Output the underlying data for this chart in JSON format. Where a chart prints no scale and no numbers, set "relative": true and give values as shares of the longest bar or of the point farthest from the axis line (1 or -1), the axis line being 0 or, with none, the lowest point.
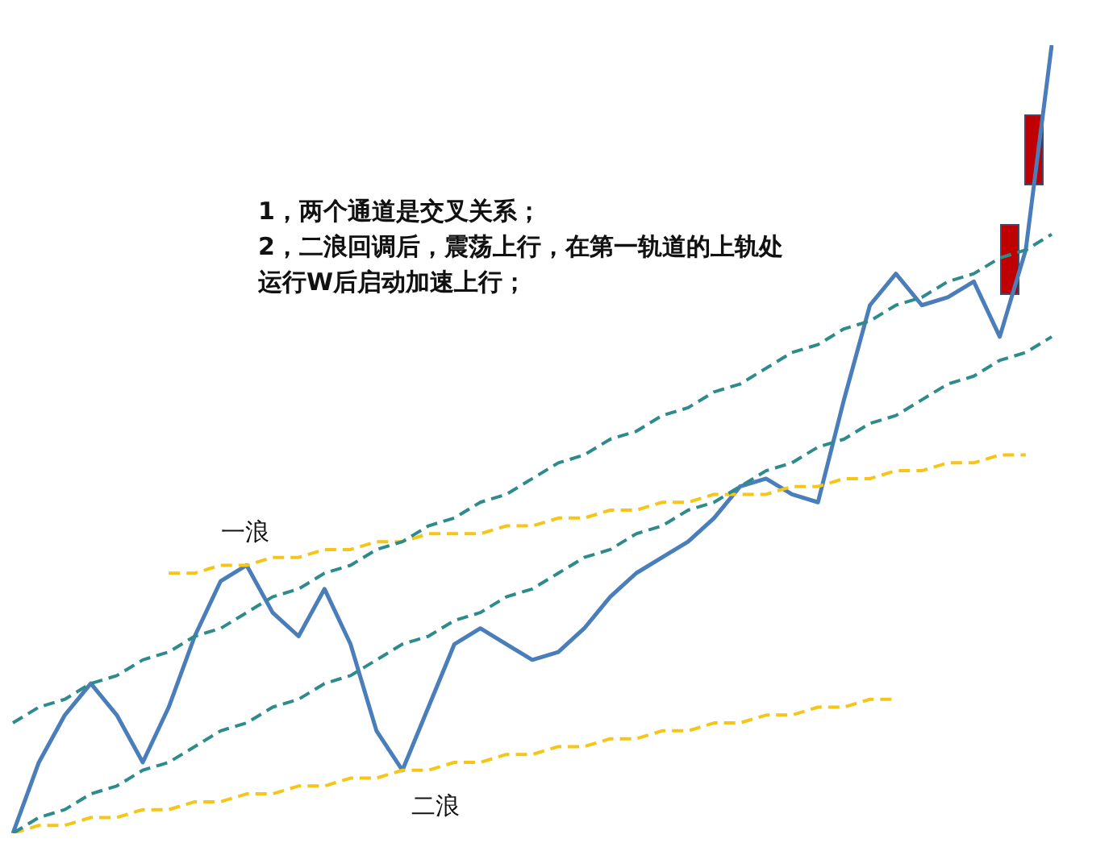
{
  "chart_data": {
    "type": "line",
    "relative": true,
    "marker": "none",
    "line_style": "solid",
    "categories": [
      null,
      null,
      null,
      null,
      null,
      null,
      null,
      null,
      null,
      null,
      null,
      null,
      null,
      null,
      null,
      null,
      null,
      null,
      null,
      null,
      null,
      null,
      null,
      null,
      null,
      null,
      null,
      null,
      null,
      null,
      null,
      null,
      null,
      null,
      null,
      null,
      null,
      null,
      null,
      null,
      null
    ],
    "series": [
      {
        "color": "#2e8b8b",
        "line_style": "dashed",
        "values": [
          0.14,
          0.16,
          0.17,
          0.19,
          0.2,
          0.22,
          0.23,
          0.25,
          0.26,
          0.28,
          0.3,
          0.31,
          0.33,
          0.34,
          0.36,
          0.37,
          0.39,
          0.4,
          0.42,
          0.43,
          0.45,
          0.47,
          0.48,
          0.5,
          0.51,
          0.53,
          0.54,
          0.56,
          0.57,
          0.59,
          0.61,
          0.62,
          0.64,
          0.65,
          0.67,
          0.68,
          0.7,
          0.71,
          0.73,
          0.74,
          0.76
        ]
      },
      {
        "color": "#2e8b8b",
        "line_style": "dashed",
        "values": [
          0,
          0.02,
          0.03,
          0.05,
          0.06,
          0.08,
          0.09,
          0.11,
          0.13,
          0.14,
          0.16,
          0.17,
          0.19,
          0.2,
          0.22,
          0.24,
          0.25,
          0.27,
          0.28,
          0.3,
          0.31,
          0.33,
          0.35,
          0.36,
          0.38,
          0.39,
          0.41,
          0.42,
          0.44,
          0.46,
          0.47,
          0.49,
          0.5,
          0.52,
          0.53,
          0.55,
          0.57,
          0.58,
          0.6,
          0.61,
          0.63
        ]
      },
      {
        "color": "#f5c518",
        "line_style": "dashed",
        "values": [
          null,
          null,
          null,
          null,
          null,
          null,
          0.33,
          0.33,
          0.34,
          0.34,
          0.35,
          0.35,
          0.36,
          0.36,
          0.37,
          0.37,
          0.38,
          0.38,
          0.38,
          0.39,
          0.39,
          0.4,
          0.4,
          0.41,
          0.41,
          0.42,
          0.42,
          0.43,
          0.43,
          0.43,
          0.44,
          0.44,
          0.45,
          0.45,
          0.46,
          0.46,
          0.47,
          0.47,
          0.48,
          0.48,
          null
        ]
      },
      {
        "color": "#f5c518",
        "line_style": "dashed",
        "values": [
          0,
          0.01,
          0.01,
          0.02,
          0.02,
          0.03,
          0.03,
          0.04,
          0.04,
          0.05,
          0.05,
          0.06,
          0.06,
          0.07,
          0.07,
          0.08,
          0.08,
          0.09,
          0.09,
          0.1,
          0.1,
          0.11,
          0.11,
          0.12,
          0.12,
          0.13,
          0.13,
          0.14,
          0.14,
          0.15,
          0.15,
          0.16,
          0.16,
          0.17,
          0.17,
          null,
          null,
          null,
          null,
          null,
          null
        ]
      },
      {
        "color": "#4a7ebb",
        "values": [
          0.0,
          0.09,
          0.15,
          0.19,
          0.15,
          0.09,
          0.16,
          0.25,
          0.32,
          0.34,
          0.28,
          0.25,
          0.31,
          0.24,
          0.13,
          0.08,
          0.16,
          0.24,
          0.26,
          0.24,
          0.22,
          0.23,
          0.26,
          0.3,
          0.33,
          0.35,
          0.37,
          0.4,
          0.44,
          0.45,
          0.43,
          0.42,
          0.55,
          0.67,
          0.71,
          0.67,
          0.68,
          0.7,
          0.63,
          0.74,
          1.0
        ]
      }
    ],
    "annotations": [
      "1，两个通道是交叉关系；",
      "2，二浪回调后，震荡上行，在第一轨道的上轨处运行W后启动加速上行；",
      "一浪",
      "二浪"
    ]
  }
}
